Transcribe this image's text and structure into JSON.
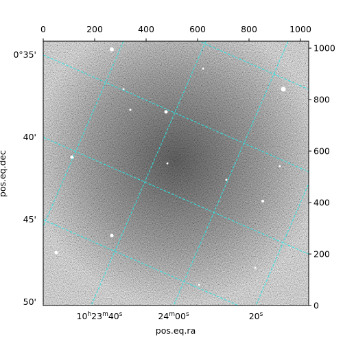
{
  "chart_data": {
    "type": "image",
    "xlabel": "pos.eq.ra",
    "ylabel": "pos.eq.dec",
    "xlim": [
      0,
      1032
    ],
    "ylim": [
      0,
      1027
    ],
    "xticks": [
      0,
      200,
      400,
      600,
      800,
      1000
    ],
    "yticks": [
      0,
      200,
      400,
      600,
      800,
      1000
    ],
    "ra_labels": [
      {
        "h": "10",
        "hs": "h",
        "m": "23",
        "ms": "m",
        "s": "40",
        "ss": "s"
      },
      {
        "m": "24",
        "ms": "m",
        "s": "00",
        "ss": "s"
      },
      {
        "s": "20",
        "ss": "s"
      }
    ],
    "dec_labels": [
      "0°35'",
      "40'",
      "45'",
      "50'"
    ],
    "grid": true
  }
}
